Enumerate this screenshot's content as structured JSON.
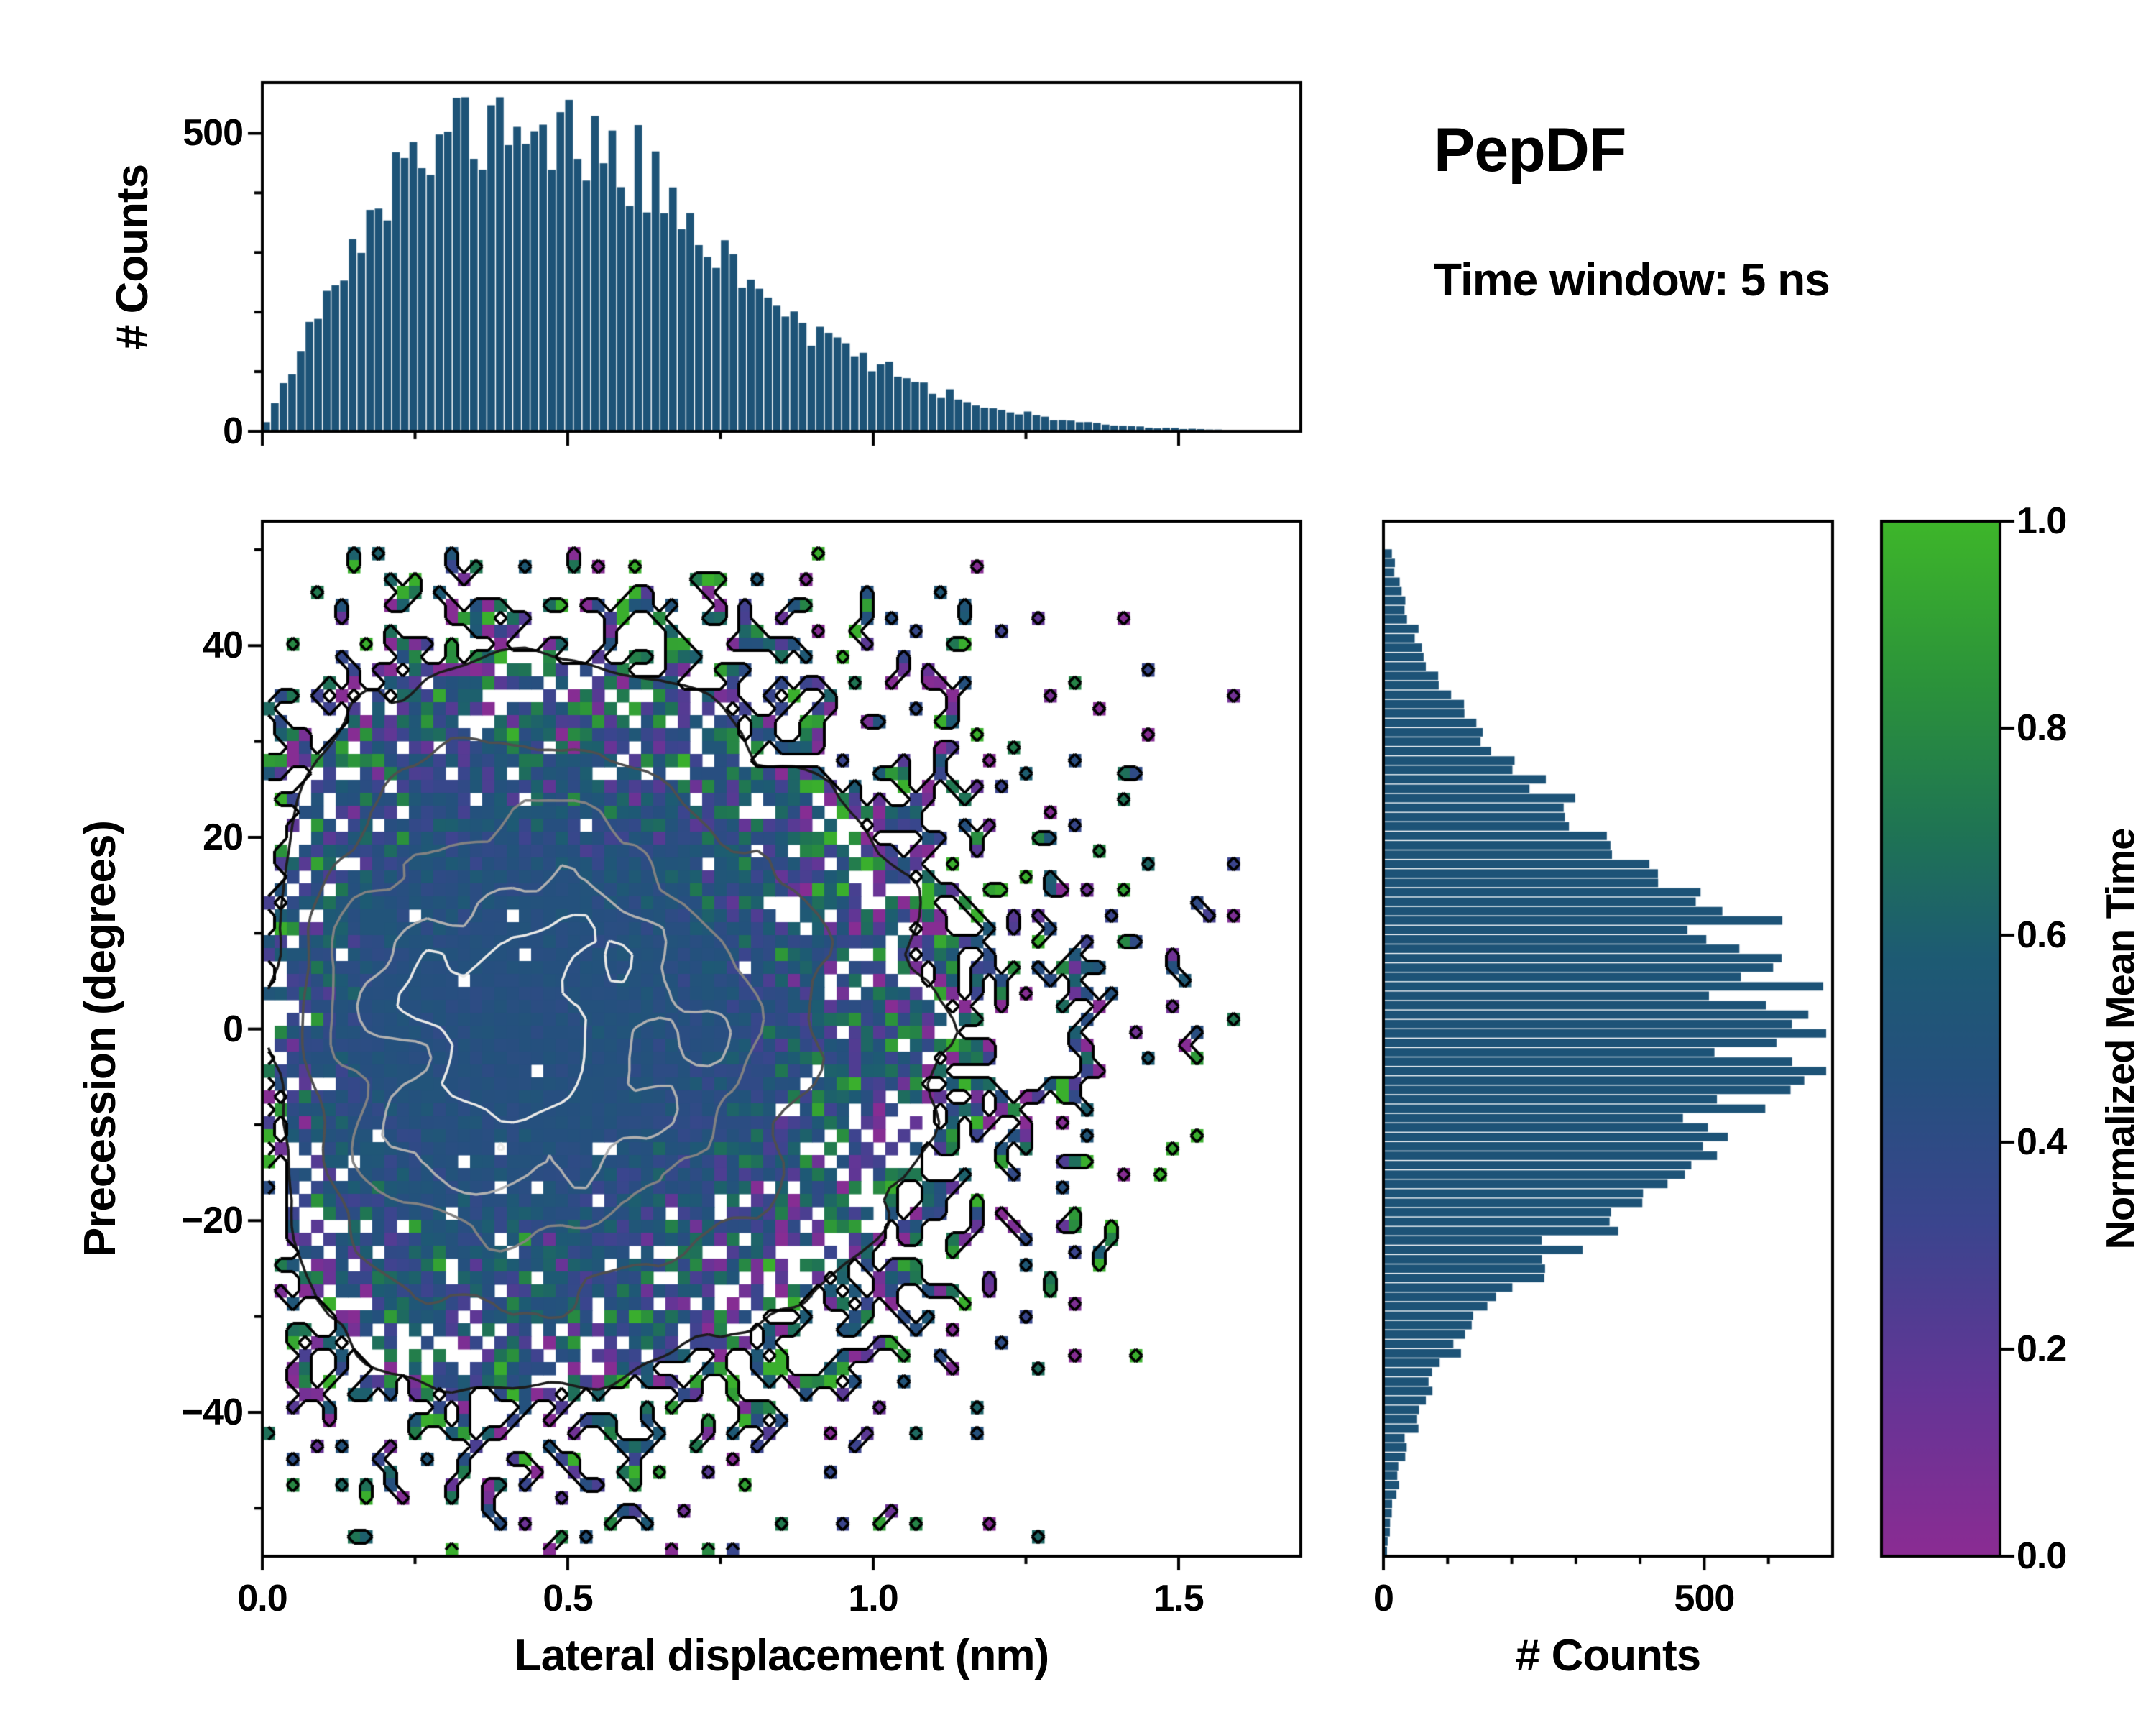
{
  "header": {
    "title": "PepDF",
    "subtitle": "Time window: 5 ns"
  },
  "chart_data": {
    "type": "heatmap",
    "description": "2D histogram of precession angle vs lateral displacement colored by normalized mean time, with density contour lines and marginal count histograms",
    "main": {
      "xlabel": "Lateral displacement (nm)",
      "ylabel": "Precession (degrees)",
      "xlim": [
        0,
        1.7
      ],
      "ylim": [
        -55,
        53
      ],
      "xticks": [
        {
          "label": "0.0",
          "value": 0
        },
        {
          "label": "0.5",
          "value": 0.5
        },
        {
          "label": "1.0",
          "value": 1.0
        },
        {
          "label": "1.5",
          "value": 1.5
        }
      ],
      "xminor": [
        0.25,
        0.75,
        1.25
      ],
      "yticks": [
        {
          "label": "40",
          "value": 40
        },
        {
          "label": "20",
          "value": 20
        },
        {
          "label": "0",
          "value": 0
        },
        {
          "label": "−20",
          "value": -20
        },
        {
          "label": "−40",
          "value": -40
        }
      ],
      "yminor": [
        50,
        30,
        10,
        -10,
        -30,
        -50
      ],
      "grid_bins": {
        "nx": 85,
        "ny": 80
      },
      "dominant_value": 0.46,
      "contours": {
        "smooth_levels": [
          0.1,
          0.24,
          0.4,
          0.57,
          0.74
        ],
        "colors": [
          "#1c1c1c",
          "#4f4f4f",
          "#828282",
          "#b0b0b0",
          "#e9e9e7"
        ],
        "outer_level_color": "#000000"
      }
    },
    "top_hist": {
      "ylabel": "# Counts",
      "ylim": [
        0,
        585
      ],
      "yticks": [
        {
          "label": "500",
          "value": 500
        },
        {
          "label": "0",
          "value": 0
        }
      ],
      "yminor": [
        100,
        200,
        300,
        400
      ],
      "bins": 120,
      "x_start": 0.0,
      "x_step": 0.05,
      "profile": [
        0,
        120,
        215,
        305,
        385,
        450,
        490,
        512,
        520,
        515,
        495,
        472,
        440,
        400,
        352,
        303,
        258,
        215,
        176,
        142,
        112,
        88,
        67,
        51,
        38,
        28,
        20,
        14,
        10,
        7,
        5,
        3,
        2
      ]
    },
    "right_hist": {
      "xlabel": "# Counts",
      "xlim": [
        0,
        700
      ],
      "xticks": [
        {
          "label": "0",
          "value": 0
        },
        {
          "label": "500",
          "value": 500
        }
      ],
      "xminor": [
        100,
        200,
        300,
        400,
        600
      ],
      "bins": 110,
      "y_start": -55,
      "y_step": 5,
      "profile": [
        5,
        14,
        28,
        55,
        95,
        155,
        230,
        320,
        425,
        520,
        600,
        650,
        610,
        525,
        430,
        330,
        238,
        162,
        102,
        58,
        28,
        10
      ]
    },
    "colorbar": {
      "label": "Normalized Mean Time",
      "ticks": [
        {
          "label": "1.0",
          "value": 1.0
        },
        {
          "label": "0.8",
          "value": 0.8
        },
        {
          "label": "0.6",
          "value": 0.6
        },
        {
          "label": "0.4",
          "value": 0.4
        },
        {
          "label": "0.2",
          "value": 0.2
        },
        {
          "label": "0.0",
          "value": 0.0
        }
      ],
      "stops": [
        {
          "t": 0.0,
          "c": "#8b2c93"
        },
        {
          "t": 0.16,
          "c": "#643596"
        },
        {
          "t": 0.32,
          "c": "#3b458e"
        },
        {
          "t": 0.46,
          "c": "#25507e"
        },
        {
          "t": 0.58,
          "c": "#1d5b73"
        },
        {
          "t": 0.7,
          "c": "#1f7454"
        },
        {
          "t": 0.84,
          "c": "#2b923b"
        },
        {
          "t": 1.0,
          "c": "#3eb62a"
        }
      ]
    },
    "style": {
      "hist_color": "#1d5377",
      "spine_color": "#000000",
      "background": "#ffffff"
    },
    "synthesis": {
      "seed": 11,
      "hist_noise": 0.09,
      "occupancy_gain": 8,
      "outlier_prob": 0.018,
      "hole_prob": 0.012,
      "value_base": 0.46,
      "value_noise_min": 0.025,
      "value_noise_edge": 0.4,
      "random_value_prob": 0.05,
      "contour_noise": 0.5
    }
  }
}
